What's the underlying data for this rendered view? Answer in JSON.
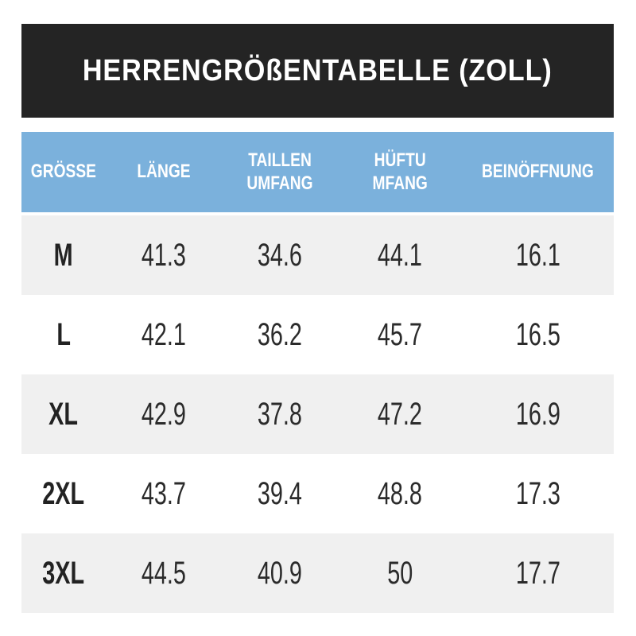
{
  "title": "HERRENGRÖßENTABELLE (ZOLL)",
  "colors": {
    "banner_bg": "#242424",
    "header_bg": "#7bb1dc",
    "shaded_row_bg": "#f0f0f0",
    "text": "#2b2b2b",
    "header_text": "#ffffff"
  },
  "table": {
    "headers": [
      "GRÖSSE",
      "LÄNGE",
      "TAILLEN UMFANG",
      "HÜFTU MFANG",
      "BEINÖFFNUNG"
    ],
    "rows": [
      {
        "cells": [
          "M",
          "41.3",
          "34.6",
          "44.1",
          "16.1"
        ]
      },
      {
        "cells": [
          "L",
          "42.1",
          "36.2",
          "45.7",
          "16.5"
        ]
      },
      {
        "cells": [
          "XL",
          "42.9",
          "37.8",
          "47.2",
          "16.9"
        ]
      },
      {
        "cells": [
          "2XL",
          "43.7",
          "39.4",
          "48.8",
          "17.3"
        ]
      },
      {
        "cells": [
          "3XL",
          "44.5",
          "40.9",
          "50",
          "17.7"
        ]
      }
    ]
  },
  "chart_data": {
    "type": "table",
    "title": "HERRENGRÖßENTABELLE (ZOLL)",
    "columns": [
      "GRÖSSE",
      "LÄNGE",
      "TAILLEN UMFANG",
      "HÜFTU MFANG",
      "BEINÖFFNUNG"
    ],
    "rows": [
      [
        "M",
        41.3,
        34.6,
        44.1,
        16.1
      ],
      [
        "L",
        42.1,
        36.2,
        45.7,
        16.5
      ],
      [
        "XL",
        42.9,
        37.8,
        47.2,
        16.9
      ],
      [
        "2XL",
        43.7,
        39.4,
        48.8,
        17.3
      ],
      [
        "3XL",
        44.5,
        40.9,
        50,
        17.7
      ]
    ],
    "units": "inches (Zoll)",
    "notes": "Men's size chart: size, length, waist circumference, hip circumference, leg opening"
  }
}
